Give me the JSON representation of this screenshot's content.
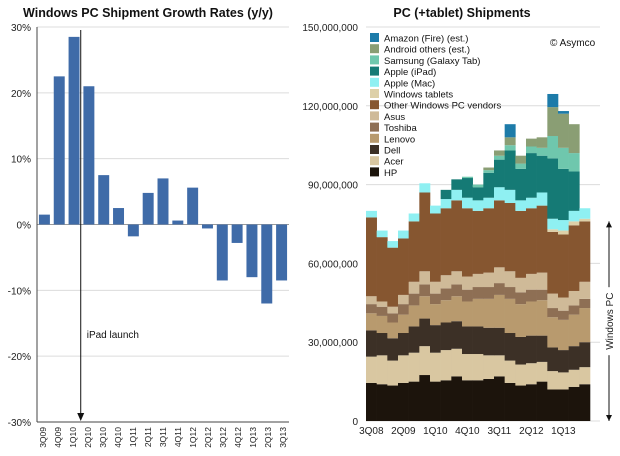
{
  "chart_data": [
    {
      "type": "bar",
      "title": "Windows PC Shipment Growth Rates (y/y)",
      "ylabel": "",
      "xlabel": "",
      "ylim": [
        -30,
        30
      ],
      "yticks": [
        30,
        20,
        10,
        0,
        -10,
        -20,
        -30
      ],
      "ytick_labels": [
        "30%",
        "20%",
        "10%",
        "0%",
        "-10%",
        "-20%",
        "-30%"
      ],
      "bar_color": "#3f6ba8",
      "categories": [
        "3Q09",
        "4Q09",
        "1Q10",
        "2Q10",
        "3Q10",
        "4Q10",
        "1Q11",
        "2Q11",
        "3Q11",
        "4Q11",
        "1Q12",
        "2Q12",
        "3Q12",
        "4Q12",
        "1Q13",
        "2Q13",
        "3Q13"
      ],
      "xtick_labels": [
        "3Q09",
        "",
        "4Q09",
        "",
        "1Q10",
        "",
        "2Q10",
        "",
        "3Q10",
        "",
        "4Q10",
        "",
        "1Q11",
        "",
        "2Q11",
        "",
        "3Q11",
        "",
        "4Q11",
        "",
        "1Q12",
        "",
        "2Q12",
        "",
        "3Q12",
        "",
        "4Q12",
        "",
        "1Q13",
        "",
        "2Q13",
        "",
        "3Q13"
      ],
      "values": [
        1.5,
        22.5,
        28.5,
        21.0,
        7.5,
        2.5,
        -1.8,
        4.8,
        7.0,
        0.6,
        5.6,
        -0.6,
        -8.5,
        -2.8,
        -8.0,
        -12.0,
        -8.5
      ],
      "annotation": {
        "text": "iPad launch",
        "at_category_index": 3
      }
    },
    {
      "type": "stacked_bar",
      "title": "PC (+tablet) Shipments",
      "credit": "© Asymco",
      "ylim": [
        0,
        150000000
      ],
      "yticks": [
        0,
        30000000,
        60000000,
        90000000,
        120000000,
        150000000
      ],
      "ytick_labels": [
        "0",
        "30,000,000",
        "60,000,000",
        "90,000,000",
        "120,000,000",
        "150,000,000"
      ],
      "xtick_labels": [
        "3Q08",
        "2Q09",
        "1Q10",
        "4Q10",
        "3Q11",
        "2Q12",
        "1Q13"
      ],
      "xtick_positions": [
        0,
        3,
        6,
        9,
        12,
        15,
        18
      ],
      "num_quarters": 21,
      "bracket_label": "Windows PC",
      "bracket_range": [
        0,
        76000000
      ],
      "legend_order": [
        "Amazon (Fire) (est.)",
        "Android others (est.)",
        "Samsung (Galaxy Tab)",
        "Apple (iPad)",
        "Apple (Mac)",
        "Windows tablets",
        "Other Windows PC vendors",
        "Asus",
        "Toshiba",
        "Lenovo",
        "Dell",
        "Acer",
        "HP"
      ],
      "series": [
        {
          "name": "HP",
          "color": "#1c140c",
          "values": [
            14.5,
            14.0,
            13.5,
            14.5,
            15.0,
            17.5,
            15.0,
            15.5,
            17.0,
            15.5,
            15.5,
            16.0,
            17.0,
            14.5,
            13.5,
            14.0,
            15.0,
            12.0,
            12.0,
            13.0,
            14.0
          ]
        },
        {
          "name": "Acer",
          "color": "#d9c7a1",
          "values": [
            10.0,
            11.0,
            9.5,
            10.5,
            11.0,
            11.0,
            11.0,
            11.5,
            10.5,
            10.0,
            10.0,
            9.0,
            8.0,
            8.5,
            8.0,
            8.0,
            7.5,
            7.0,
            6.5,
            6.5,
            6.5
          ]
        },
        {
          "name": "Dell",
          "color": "#3c3026",
          "values": [
            10.0,
            8.5,
            8.5,
            8.5,
            10.0,
            10.5,
            10.5,
            10.5,
            10.5,
            10.5,
            10.5,
            10.5,
            10.5,
            10.5,
            10.5,
            10.5,
            10.0,
            9.0,
            8.5,
            9.0,
            9.5
          ]
        },
        {
          "name": "Lenovo",
          "color": "#b89a6e",
          "values": [
            6.5,
            6.5,
            6.0,
            7.0,
            8.0,
            8.5,
            8.0,
            8.5,
            9.5,
            9.5,
            10.5,
            11.0,
            12.5,
            13.0,
            12.5,
            13.0,
            13.5,
            11.5,
            11.5,
            12.0,
            13.0
          ]
        },
        {
          "name": "Toshiba",
          "color": "#8e6f54",
          "values": [
            3.5,
            3.5,
            3.5,
            4.0,
            4.5,
            4.5,
            4.0,
            4.5,
            4.5,
            4.5,
            4.5,
            4.5,
            4.5,
            4.5,
            4.5,
            4.5,
            4.0,
            3.5,
            3.5,
            3.5,
            3.5
          ]
        },
        {
          "name": "Asus",
          "color": "#cfba98",
          "values": [
            3.0,
            2.0,
            2.5,
            3.5,
            4.5,
            5.0,
            4.5,
            5.0,
            5.0,
            5.0,
            5.0,
            5.5,
            6.0,
            6.0,
            5.5,
            6.0,
            6.5,
            5.5,
            5.0,
            5.5,
            6.5
          ]
        },
        {
          "name": "Other Windows PC vendors",
          "color": "#865630",
          "values": [
            30.0,
            24.5,
            22.5,
            21.5,
            23.0,
            30.0,
            26.0,
            25.5,
            27.0,
            26.0,
            24.0,
            24.5,
            25.5,
            26.0,
            25.5,
            25.0,
            25.5,
            23.5,
            24.0,
            25.0,
            23.0
          ]
        },
        {
          "name": "Windows tablets",
          "color": "#ddd0a8",
          "values": [
            0,
            0,
            0,
            0,
            0,
            0,
            0,
            0,
            0,
            0,
            0,
            0,
            0,
            0,
            0,
            0,
            0,
            1.0,
            1.5,
            1.5,
            1.0
          ]
        },
        {
          "name": "Apple (Mac)",
          "color": "#8ff0f2",
          "values": [
            2.5,
            2.5,
            2.5,
            3.0,
            3.0,
            3.5,
            3.0,
            3.5,
            4.0,
            4.0,
            4.0,
            4.0,
            5.0,
            5.0,
            4.0,
            4.0,
            5.0,
            4.0,
            4.0,
            4.0,
            4.0
          ]
        },
        {
          "name": "Apple (iPad)",
          "color": "#157a75",
          "values": [
            0,
            0,
            0,
            0,
            0,
            0,
            0,
            3.5,
            4.0,
            7.5,
            5.0,
            9.5,
            10.5,
            15.0,
            12.0,
            17.0,
            14.0,
            23.0,
            19.5,
            15.0,
            0
          ]
        },
        {
          "name": "Samsung (Galaxy Tab)",
          "color": "#6fc7ad",
          "values": [
            0,
            0,
            0,
            0,
            0,
            0,
            0,
            0,
            0,
            0.5,
            1.0,
            1.0,
            1.5,
            2.0,
            2.0,
            2.5,
            3.0,
            8.5,
            8.0,
            7.0,
            0
          ]
        },
        {
          "name": "Android others (est.)",
          "color": "#8a9e74",
          "values": [
            0,
            0,
            0,
            0,
            0,
            0,
            0,
            0,
            0,
            0,
            0,
            1.0,
            2.0,
            3.0,
            3.0,
            3.0,
            4.0,
            11.0,
            13.0,
            11.0,
            0
          ]
        },
        {
          "name": "Amazon (Fire) (est.)",
          "color": "#1d7ba9",
          "values": [
            0,
            0,
            0,
            0,
            0,
            0,
            0,
            0,
            0,
            0,
            0,
            0,
            0,
            5.0,
            0,
            0,
            0,
            5.0,
            1.0,
            0,
            0
          ]
        }
      ],
      "value_unit_multiplier": 1000000
    }
  ]
}
